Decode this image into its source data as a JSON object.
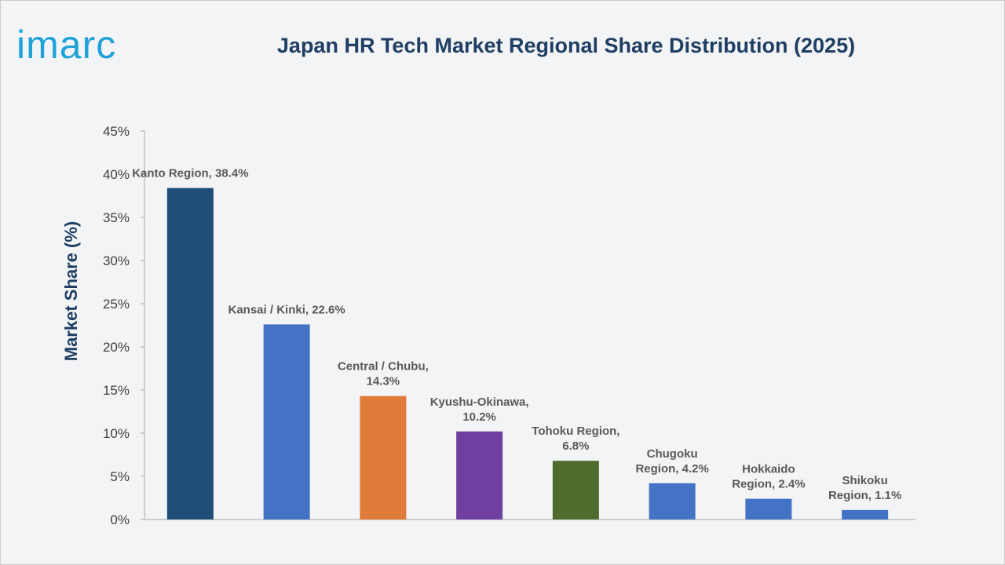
{
  "logo": {
    "text": "imarc",
    "color": "#1fa2d9"
  },
  "chart_data": {
    "type": "bar",
    "title": "Japan HR Tech Market Regional Share Distribution (2025)",
    "xlabel": "",
    "ylabel": "Market Share (%)",
    "ylim": [
      0,
      45
    ],
    "yticks": [
      "0%",
      "5%",
      "10%",
      "15%",
      "20%",
      "25%",
      "30%",
      "35%",
      "40%",
      "45%"
    ],
    "categories": [
      "Kanto Region",
      "Kansai / Kinki",
      "Central / Chubu",
      "Kyushu-Okinawa",
      "Tohoku Region",
      "Chugoku Region",
      "Hokkaido Region",
      "Shikoku Region"
    ],
    "values": [
      38.4,
      22.6,
      14.3,
      10.2,
      6.8,
      4.2,
      2.4,
      1.1
    ],
    "data_labels": [
      [
        "Kanto Region, 38.4%"
      ],
      [
        "Kansai / Kinki, 22.6%"
      ],
      [
        "Central / Chubu,",
        "14.3%"
      ],
      [
        "Kyushu-Okinawa,",
        "10.2%"
      ],
      [
        "Tohoku Region,",
        "6.8%"
      ],
      [
        "Chugoku",
        "Region, 4.2%"
      ],
      [
        "Hokkaido",
        "Region, 2.4%"
      ],
      [
        "Shikoku",
        "Region, 1.1%"
      ]
    ],
    "colors": [
      "#1f4e79",
      "#4472c4",
      "#e07b39",
      "#7040a0",
      "#4f6b2e",
      "#4472c4",
      "#4472c4",
      "#4472c4"
    ],
    "grid": false,
    "legend": "none"
  }
}
